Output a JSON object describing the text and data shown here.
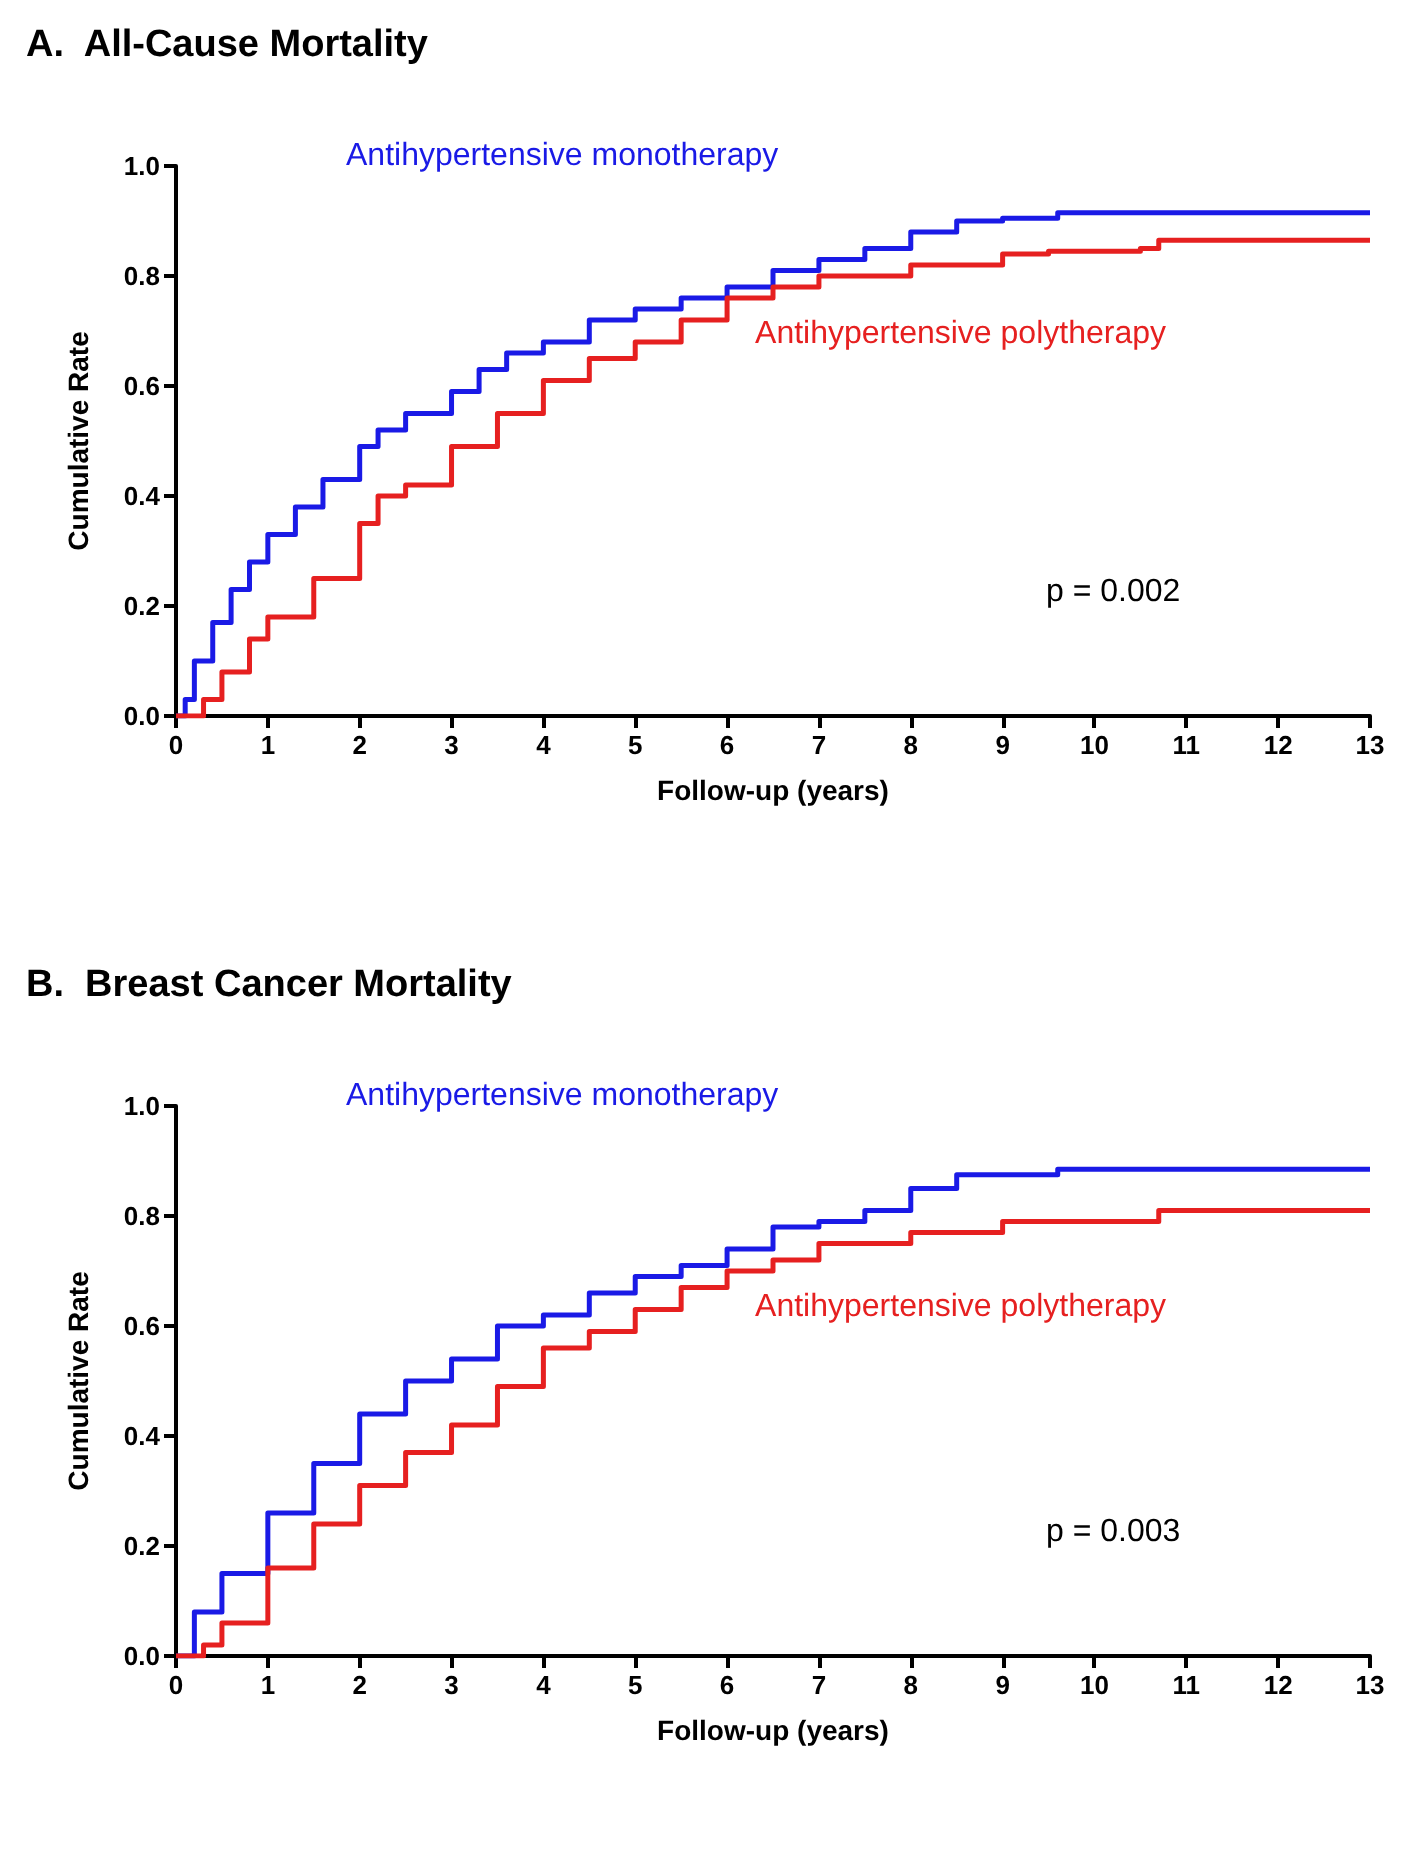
{
  "chart_data": [
    {
      "type": "step",
      "title": "A.  All-Cause Mortality",
      "xlabel": "Follow-up (years)",
      "ylabel": "Cumulative Rate",
      "xlim": [
        0,
        13
      ],
      "xticks": [
        0,
        1,
        2,
        3,
        4,
        5,
        6,
        7,
        8,
        9,
        10,
        11,
        12,
        13
      ],
      "ylim": [
        0,
        1
      ],
      "yticks": [
        {
          "value": 0,
          "label": "0.0"
        },
        {
          "value": 0.2,
          "label": "0.2"
        },
        {
          "value": 0.4,
          "label": "0.4"
        },
        {
          "value": 0.6,
          "label": "0.6"
        },
        {
          "value": 0.8,
          "label": "0.8"
        },
        {
          "value": 1,
          "label": "1.0"
        }
      ],
      "annotations": [
        "p = 0.002"
      ],
      "series": [
        {
          "name": "Antihypertensive monotherapy",
          "color": "#1a1ae6",
          "x": [
            0,
            0.1,
            0.2,
            0.4,
            0.6,
            0.8,
            1,
            1.3,
            1.6,
            2,
            2.2,
            2.5,
            3,
            3.3,
            3.6,
            4,
            4.5,
            5,
            5.5,
            6,
            6.5,
            7,
            7.5,
            8,
            8.5,
            9,
            9.6,
            13
          ],
          "values": [
            0,
            0.03,
            0.1,
            0.17,
            0.23,
            0.28,
            0.33,
            0.38,
            0.43,
            0.49,
            0.52,
            0.55,
            0.59,
            0.63,
            0.66,
            0.68,
            0.72,
            0.74,
            0.76,
            0.78,
            0.81,
            0.83,
            0.85,
            0.88,
            0.9,
            0.905,
            0.915,
            0.915
          ]
        },
        {
          "name": "Antihypertensive polytherapy",
          "color": "#e62020",
          "x": [
            0,
            0.3,
            0.5,
            0.8,
            1,
            1.5,
            2,
            2.2,
            2.5,
            3,
            3.5,
            4,
            4.5,
            5,
            5.5,
            6,
            6.5,
            7,
            8,
            9,
            9.5,
            10.5,
            10.7,
            13
          ],
          "values": [
            0,
            0.03,
            0.08,
            0.14,
            0.18,
            0.25,
            0.35,
            0.4,
            0.42,
            0.49,
            0.55,
            0.61,
            0.65,
            0.68,
            0.72,
            0.76,
            0.78,
            0.8,
            0.82,
            0.84,
            0.845,
            0.85,
            0.865,
            0.865
          ]
        }
      ]
    },
    {
      "type": "step",
      "title": "B.  Breast Cancer Mortality",
      "xlabel": "Follow-up (years)",
      "ylabel": "Cumulative Rate",
      "xlim": [
        0,
        13
      ],
      "xticks": [
        0,
        1,
        2,
        3,
        4,
        5,
        6,
        7,
        8,
        9,
        10,
        11,
        12,
        13
      ],
      "ylim": [
        0,
        1
      ],
      "yticks": [
        {
          "value": 0,
          "label": "0.0"
        },
        {
          "value": 0.2,
          "label": "0.2"
        },
        {
          "value": 0.4,
          "label": "0.4"
        },
        {
          "value": 0.6,
          "label": "0.6"
        },
        {
          "value": 0.8,
          "label": "0.8"
        },
        {
          "value": 1,
          "label": "1.0"
        }
      ],
      "annotations": [
        "p = 0.003"
      ],
      "series": [
        {
          "name": "Antihypertensive monotherapy",
          "color": "#1a1ae6",
          "x": [
            0,
            0.2,
            0.5,
            1,
            1.5,
            2,
            2.5,
            3,
            3.5,
            4,
            4.5,
            5,
            5.5,
            6,
            6.5,
            7,
            7.5,
            8,
            8.5,
            9.6,
            13
          ],
          "values": [
            0,
            0.08,
            0.15,
            0.26,
            0.35,
            0.44,
            0.5,
            0.54,
            0.6,
            0.62,
            0.66,
            0.69,
            0.71,
            0.74,
            0.78,
            0.79,
            0.81,
            0.85,
            0.875,
            0.885,
            0.885
          ]
        },
        {
          "name": "Antihypertensive polytherapy",
          "color": "#e62020",
          "x": [
            0,
            0.3,
            0.5,
            1,
            1.5,
            2,
            2.5,
            3,
            3.5,
            4,
            4.5,
            5,
            5.5,
            6,
            6.5,
            7,
            8,
            9,
            10.5,
            10.7,
            13
          ],
          "values": [
            0,
            0.02,
            0.06,
            0.16,
            0.24,
            0.31,
            0.37,
            0.42,
            0.49,
            0.56,
            0.59,
            0.63,
            0.67,
            0.7,
            0.72,
            0.75,
            0.77,
            0.79,
            0.79,
            0.81,
            0.81
          ]
        }
      ]
    }
  ]
}
